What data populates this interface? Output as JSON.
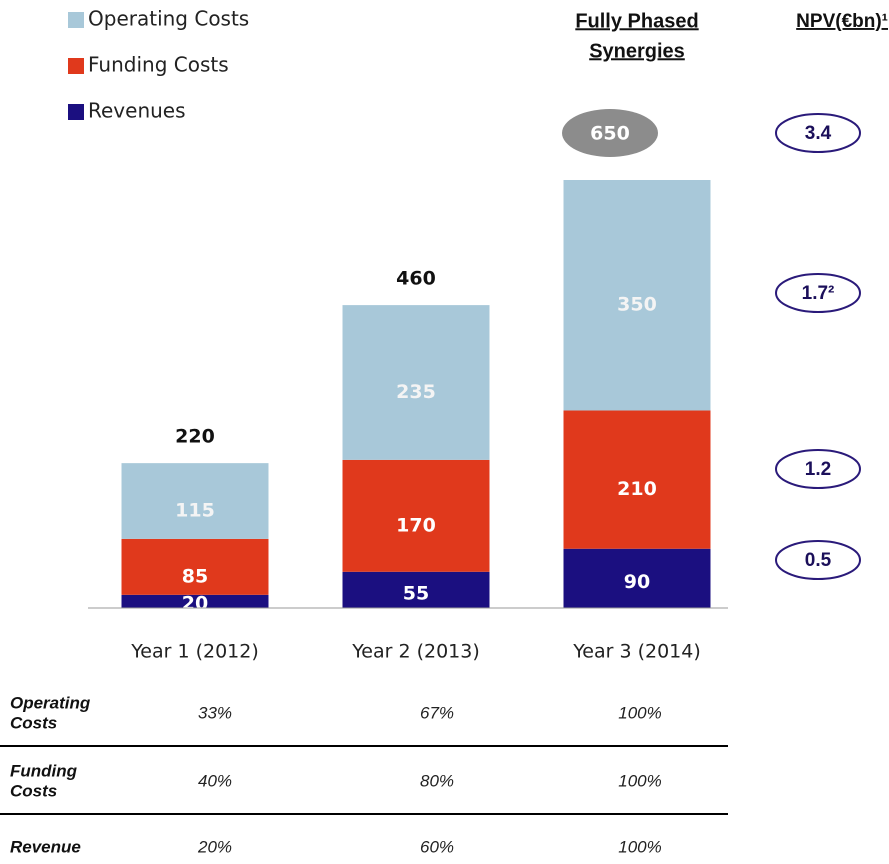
{
  "chart_data": {
    "type": "bar",
    "stacked": true,
    "categories": [
      "Year 1 (2012)",
      "Year 2 (2013)",
      "Year 3 (2014)"
    ],
    "series": [
      {
        "name": "Revenues",
        "color": "#1b0f80",
        "values": [
          20,
          55,
          90
        ]
      },
      {
        "name": "Funding Costs",
        "color": "#e0391c",
        "values": [
          85,
          170,
          210
        ]
      },
      {
        "name": "Operating Costs",
        "color": "#a8c8d9",
        "values": [
          115,
          235,
          350
        ]
      }
    ],
    "totals": [
      220,
      460,
      650
    ],
    "header_lines": [
      "Fully Phased",
      "Synergies"
    ],
    "npv_title": "NPV(€bn)¹",
    "npv": {
      "values": [
        3.4,
        1.7,
        1.2,
        0.5
      ],
      "value_labels": [
        "3.4",
        "1.7²",
        "1.2",
        "0.5"
      ]
    },
    "phasing": [
      {
        "label": [
          "Operating",
          "Costs"
        ],
        "values": [
          "33%",
          "67%",
          "100%"
        ]
      },
      {
        "label": [
          "Funding",
          "Costs"
        ],
        "values": [
          "40%",
          "80%",
          "100%"
        ]
      },
      {
        "label": [
          "Revenue"
        ],
        "values": [
          "20%",
          "60%",
          "100%"
        ]
      }
    ]
  }
}
